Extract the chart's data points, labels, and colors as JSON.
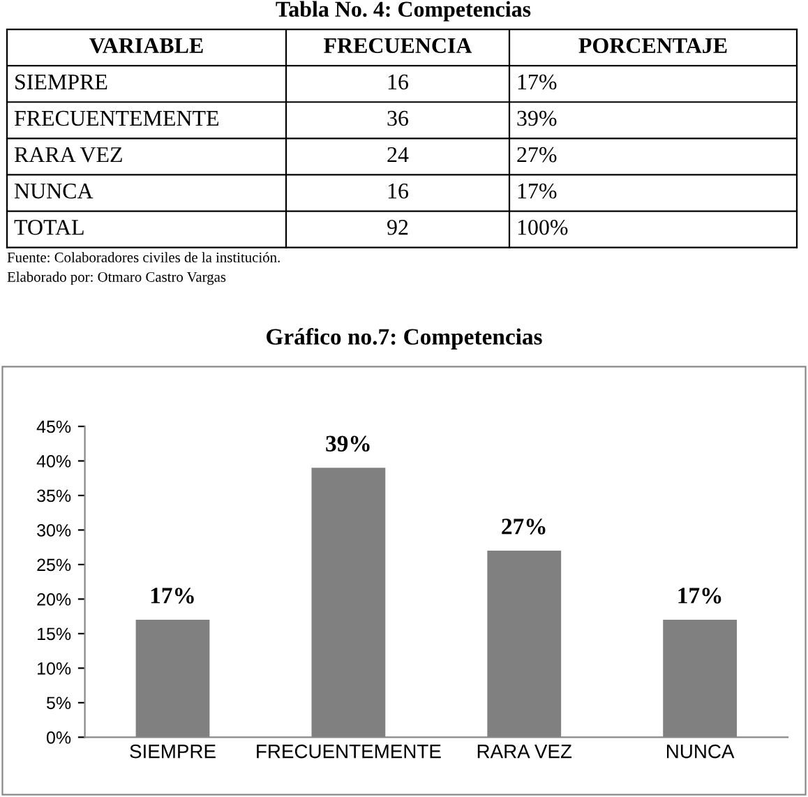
{
  "chart_data": [
    {
      "type": "other",
      "title": "Tabla No. 4: Competencias",
      "annotations": [
        "VARIABLE",
        "FRECUENCIA",
        "PORCENTAJE",
        "SIEMPRE",
        "16",
        "17%",
        "FRECUENTEMENTE",
        "36",
        "39%",
        "RARA VEZ",
        "24",
        "27%",
        "NUNCA",
        "16",
        "17%",
        "TOTAL",
        "92",
        "100%",
        "Fuente: Colaboradores civiles de la institución.",
        "Elaborado por: Otmaro Castro Vargas"
      ]
    },
    {
      "type": "bar",
      "title": "Gráfico no.7: Competencias",
      "categories": [
        "SIEMPRE",
        "FRECUENTEMENTE",
        "RARA VEZ",
        "NUNCA"
      ],
      "values": [
        17,
        39,
        27,
        17
      ],
      "color": "#808080",
      "value_labels": [
        "17%",
        "39%",
        "27%",
        "17%"
      ],
      "ylim": [
        0,
        45
      ],
      "yticks": [
        {
          "value": 0,
          "label": "0%"
        },
        {
          "value": 5,
          "label": "5%"
        },
        {
          "value": 10,
          "label": "10%"
        },
        {
          "value": 15,
          "label": "15%"
        },
        {
          "value": 20,
          "label": "20%"
        },
        {
          "value": 25,
          "label": "25%"
        },
        {
          "value": 30,
          "label": "30%"
        },
        {
          "value": 35,
          "label": "35%"
        },
        {
          "value": 40,
          "label": "40%"
        },
        {
          "value": 45,
          "label": "45%"
        }
      ]
    }
  ]
}
